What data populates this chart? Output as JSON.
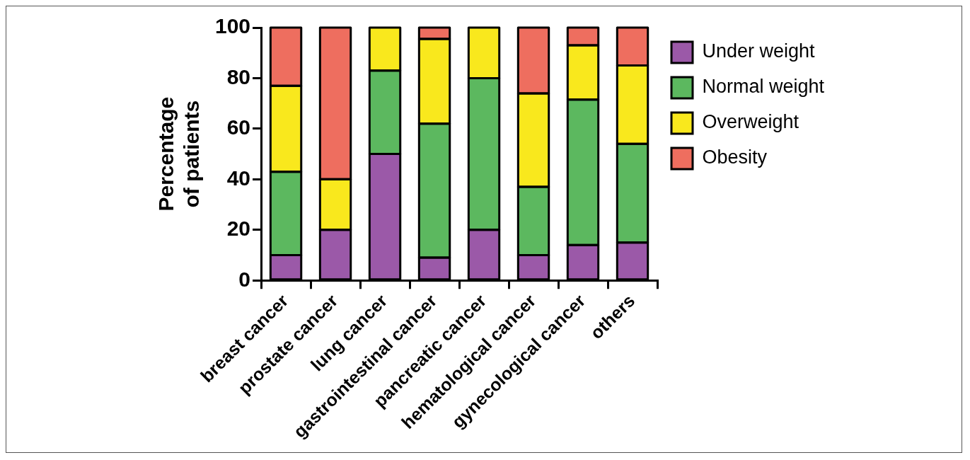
{
  "chart_data": {
    "type": "bar",
    "stacked": true,
    "ylabel": "Percentage\nof patients",
    "categories": [
      "breast cancer",
      "prostate cancer",
      "lung cancer",
      "gastrointestinal cancer",
      "pancreatic cancer",
      "hematological cancer",
      "gynecological cancer",
      "others"
    ],
    "series": [
      {
        "name": "Under weight",
        "color": "#9b59a8",
        "values": [
          10,
          20,
          50,
          9,
          20,
          10,
          14,
          15
        ]
      },
      {
        "name": "Normal weight",
        "color": "#5cb85f",
        "values": [
          33,
          0,
          33,
          53,
          60,
          27,
          57.5,
          39
        ]
      },
      {
        "name": "Overweight",
        "color": "#f9e81d",
        "values": [
          34,
          20,
          17,
          33.5,
          20,
          37,
          21.5,
          31
        ]
      },
      {
        "name": "Obesity",
        "color": "#ee6e5f",
        "values": [
          23,
          60,
          0,
          4.5,
          0,
          26,
          7,
          15
        ]
      }
    ],
    "ylim": [
      0,
      100
    ],
    "yticks": [
      0,
      20,
      40,
      60,
      80,
      100
    ],
    "legend": "right"
  }
}
